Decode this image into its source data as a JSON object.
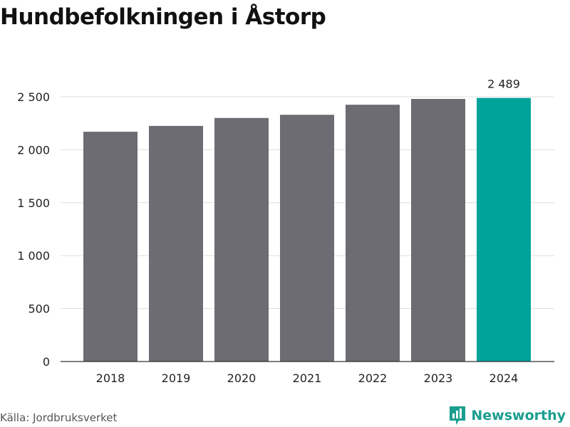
{
  "title": "Hundbefolkningen i Åstorp",
  "source": "Källa: Jordbruksverket",
  "brand": {
    "name": "Newsworthy",
    "color": "#1a9e8f",
    "icon": "newsworthy-logo-icon"
  },
  "colors": {
    "bar": "#6d6c73",
    "highlight": "#00a39a",
    "grid": "#dddddd",
    "axis": "#333333"
  },
  "chart_data": {
    "type": "bar",
    "title": "Hundbefolkningen i Åstorp",
    "categories": [
      "2018",
      "2019",
      "2020",
      "2021",
      "2022",
      "2023",
      "2024"
    ],
    "values": [
      2170,
      2225,
      2300,
      2330,
      2425,
      2480,
      2489
    ],
    "highlight_index": 6,
    "data_labels": [
      {
        "index": 6,
        "text": "2 489"
      }
    ],
    "yticks": [
      {
        "value": 0,
        "label": "0"
      },
      {
        "value": 500,
        "label": "500"
      },
      {
        "value": 1000,
        "label": "1 000"
      },
      {
        "value": 1500,
        "label": "1 500"
      },
      {
        "value": 2000,
        "label": "2 000"
      },
      {
        "value": 2500,
        "label": "2 500"
      }
    ],
    "ylim": [
      0,
      2500
    ],
    "grid": true,
    "xlabel": "",
    "ylabel": ""
  }
}
